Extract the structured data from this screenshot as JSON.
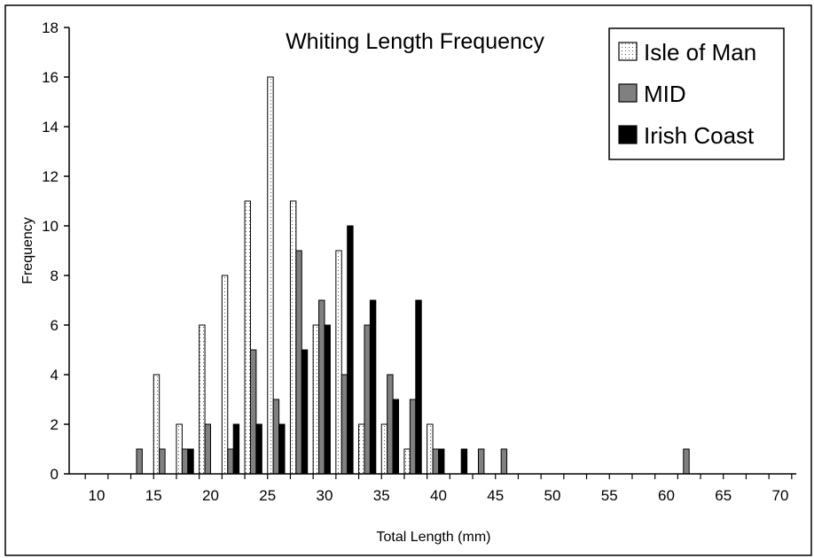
{
  "chart_data": {
    "type": "bar",
    "title": "Whiting Length Frequency",
    "xlabel": "Total Length (mm)",
    "ylabel": "Frequency",
    "ylim": [
      0,
      18
    ],
    "yticks": [
      0,
      2,
      4,
      6,
      8,
      10,
      12,
      14,
      16,
      18
    ],
    "xticks": [
      10,
      15,
      20,
      25,
      30,
      35,
      40,
      45,
      50,
      55,
      60,
      65,
      70
    ],
    "xlim": [
      10,
      70
    ],
    "categories": [
      10,
      11,
      12,
      13,
      14,
      15,
      16,
      17,
      18,
      19,
      20,
      21,
      22,
      23,
      24,
      25,
      26,
      27,
      28,
      29,
      30,
      31,
      32,
      33,
      34,
      35,
      36,
      37,
      38,
      39,
      40,
      41,
      42,
      43,
      44,
      45,
      46,
      47,
      48,
      49,
      50,
      51,
      52,
      53,
      54,
      55,
      56,
      57,
      58,
      59,
      60,
      61,
      62,
      63,
      64,
      65,
      66,
      67,
      68,
      69,
      70
    ],
    "series": [
      {
        "name": "Isle of Man",
        "color": "#ffffff",
        "pattern": "dotted",
        "values": [
          0,
          0,
          0,
          0,
          0,
          0,
          4,
          0,
          2,
          0,
          6,
          0,
          8,
          0,
          11,
          0,
          16,
          0,
          11,
          0,
          6,
          0,
          9,
          0,
          2,
          0,
          2,
          0,
          1,
          0,
          2,
          0,
          0,
          0,
          0,
          0,
          0,
          0,
          0,
          0,
          0,
          0,
          0,
          0,
          0,
          0,
          0,
          0,
          0,
          0,
          0,
          0,
          0,
          0,
          0,
          0,
          0,
          0,
          0,
          0,
          0
        ]
      },
      {
        "name": "MID",
        "color": "#808080",
        "values": [
          0,
          0,
          0,
          0,
          1,
          0,
          1,
          0,
          1,
          0,
          2,
          0,
          1,
          0,
          5,
          0,
          3,
          0,
          9,
          0,
          7,
          0,
          4,
          0,
          6,
          0,
          4,
          0,
          3,
          0,
          1,
          0,
          0,
          0,
          1,
          0,
          1,
          0,
          0,
          0,
          0,
          0,
          0,
          0,
          0,
          0,
          0,
          0,
          0,
          0,
          0,
          0,
          1,
          0,
          0,
          0,
          0,
          0,
          0,
          0,
          0
        ]
      },
      {
        "name": "Irish Coast",
        "color": "#000000",
        "values": [
          0,
          0,
          0,
          0,
          0,
          0,
          0,
          0,
          1,
          0,
          0,
          0,
          2,
          0,
          2,
          0,
          2,
          0,
          5,
          0,
          6,
          0,
          10,
          0,
          7,
          0,
          3,
          0,
          7,
          0,
          1,
          0,
          1,
          0,
          0,
          0,
          0,
          0,
          0,
          0,
          0,
          0,
          0,
          0,
          0,
          0,
          0,
          0,
          0,
          0,
          0,
          0,
          0,
          0,
          0,
          0,
          0,
          0,
          0,
          0,
          0
        ]
      }
    ],
    "legend_position": "top-right",
    "grid": false
  }
}
